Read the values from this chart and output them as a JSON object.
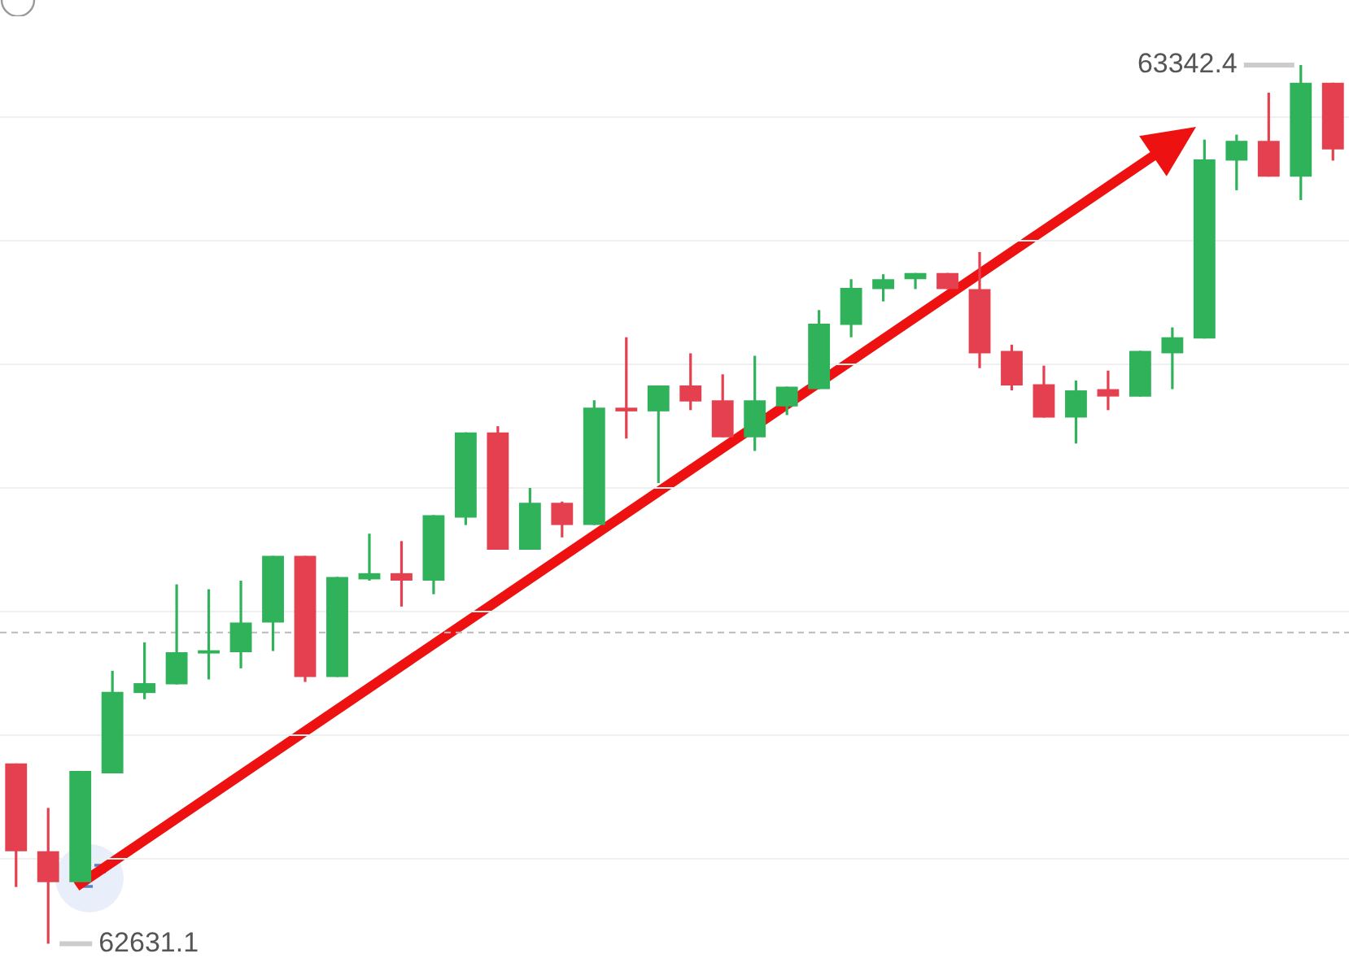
{
  "chart_data": {
    "type": "candlestick",
    "categories": [
      null,
      null,
      null,
      null,
      null,
      null,
      null,
      null,
      null,
      null,
      null,
      null,
      null,
      null,
      null,
      null,
      null,
      null,
      null,
      null,
      null,
      null,
      null,
      null,
      null,
      null,
      null,
      null,
      null,
      null,
      null,
      null,
      null,
      null,
      null,
      null,
      null,
      null,
      null,
      null,
      null,
      null
    ],
    "ohlc": [
      [
        62777,
        62777,
        62677,
        62706
      ],
      [
        62706,
        62741,
        62631.1,
        62681
      ],
      [
        62681,
        62771,
        62681,
        62771
      ],
      [
        62769,
        62852,
        62769,
        62835
      ],
      [
        62834,
        62875,
        62829,
        62842
      ],
      [
        62841,
        62922,
        62841,
        62867
      ],
      [
        62866,
        62918,
        62845,
        62868
      ],
      [
        62867,
        62925,
        62854,
        62891
      ],
      [
        62891,
        62945,
        62868,
        62945
      ],
      [
        62945,
        62945,
        62843,
        62847
      ],
      [
        62847,
        62928,
        62847,
        62928
      ],
      [
        62926,
        62963,
        62925,
        62931
      ],
      [
        62931,
        62957,
        62904,
        62925
      ],
      [
        62925,
        62978,
        62914,
        62978
      ],
      [
        62976,
        63045,
        62970,
        63045
      ],
      [
        63045,
        63050,
        62950,
        62950
      ],
      [
        62950,
        63000,
        62950,
        62988
      ],
      [
        62988,
        62989,
        62960,
        62970
      ],
      [
        62970,
        63071,
        62970,
        63065
      ],
      [
        63065,
        63122,
        63040,
        63062
      ],
      [
        63062,
        63083,
        63004,
        63083
      ],
      [
        63083,
        63109,
        63063,
        63070
      ],
      [
        63071,
        63092,
        63041,
        63041
      ],
      [
        63041,
        63107,
        63030,
        63071
      ],
      [
        63066,
        63082,
        63059,
        63082
      ],
      [
        63080,
        63144,
        63080,
        63133
      ],
      [
        63132,
        63169,
        63122,
        63162
      ],
      [
        63161,
        63173,
        63151,
        63169
      ],
      [
        63169,
        63174,
        63161,
        63174
      ],
      [
        63174,
        63174,
        63161,
        63161
      ],
      [
        63161,
        63191,
        63097,
        63109
      ],
      [
        63111,
        63116,
        63079,
        63083
      ],
      [
        63084,
        63099,
        63057,
        63057
      ],
      [
        63057,
        63087,
        63036,
        63079
      ],
      [
        63080,
        63095,
        63063,
        63074
      ],
      [
        63074,
        63111,
        63074,
        63111
      ],
      [
        63109,
        63130,
        63080,
        63122
      ],
      [
        63121,
        63282,
        63121,
        63266
      ],
      [
        63265,
        63286,
        63241,
        63281
      ],
      [
        63281,
        63320,
        63252,
        63252
      ],
      [
        63252,
        63342.4,
        63233,
        63328
      ],
      [
        63328,
        63328,
        63265,
        63274
      ]
    ],
    "colors": [
      "#e5404f",
      "#e5404f",
      "#2fb25a",
      "#2fb25a",
      "#2fb25a",
      "#2fb25a",
      "#2fb25a",
      "#2fb25a",
      "#2fb25a",
      "#e5404f",
      "#2fb25a",
      "#2fb25a",
      "#e5404f",
      "#2fb25a",
      "#2fb25a",
      "#e5404f",
      "#2fb25a",
      "#e5404f",
      "#2fb25a",
      "#e5404f",
      "#2fb25a",
      "#e5404f",
      "#e5404f",
      "#2fb25a",
      "#2fb25a",
      "#2fb25a",
      "#2fb25a",
      "#2fb25a",
      "#2fb25a",
      "#e5404f",
      "#e5404f",
      "#e5404f",
      "#e5404f",
      "#2fb25a",
      "#e5404f",
      "#2fb25a",
      "#2fb25a",
      "#2fb25a",
      "#2fb25a",
      "#e5404f",
      "#2fb25a",
      "#e5404f"
    ],
    "ylim": [
      62609,
      63395
    ],
    "yticks": [
      {
        "value": 62700,
        "label": null
      },
      {
        "value": 62800,
        "label": null
      },
      {
        "value": 62900,
        "label": null
      },
      {
        "value": 63000,
        "label": null
      },
      {
        "value": 63100,
        "label": null
      },
      {
        "value": 63200,
        "label": null
      },
      {
        "value": 63300,
        "label": null
      }
    ],
    "grid": "y",
    "ref_lines": [
      {
        "axis": "y",
        "value": 62883,
        "color": "#bbbbbb",
        "line_style": "dashed"
      }
    ],
    "annotations": [
      "63342.4",
      "62631.1"
    ]
  }
}
